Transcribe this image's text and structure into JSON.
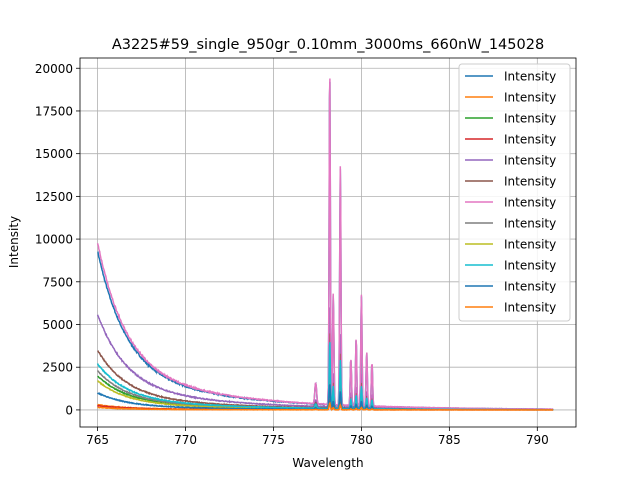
{
  "chart_data": {
    "type": "line",
    "title": "A3225#59_single_950gr_0.10mm_3000ms_660nW_145028",
    "xlabel": "Wavelength",
    "ylabel": "Intensity",
    "xlim": [
      764.0,
      792.2
    ],
    "ylim": [
      -1000,
      20600
    ],
    "xticks": [
      765,
      770,
      775,
      780,
      785,
      790
    ],
    "yticks": [
      0,
      2500,
      5000,
      7500,
      10000,
      12500,
      15000,
      17500,
      20000
    ],
    "xtick_labels": [
      "765",
      "770",
      "775",
      "780",
      "785",
      "790"
    ],
    "ytick_labels": [
      "0",
      "2500",
      "5000",
      "7500",
      "10000",
      "12500",
      "15000",
      "17500",
      "20000"
    ],
    "grid": true,
    "legend_position": "top-right",
    "peaks": [
      {
        "x": 777.4,
        "w": 0.07,
        "h": 0.062
      },
      {
        "x": 778.2,
        "w": 0.05,
        "h": 1.0
      },
      {
        "x": 778.4,
        "w": 0.05,
        "h": 0.33
      },
      {
        "x": 778.8,
        "w": 0.05,
        "h": 0.71
      },
      {
        "x": 779.4,
        "w": 0.05,
        "h": 0.14
      },
      {
        "x": 779.7,
        "w": 0.05,
        "h": 0.2
      },
      {
        "x": 780.0,
        "w": 0.05,
        "h": 0.33
      },
      {
        "x": 780.3,
        "w": 0.05,
        "h": 0.16
      },
      {
        "x": 780.6,
        "w": 0.05,
        "h": 0.13
      }
    ],
    "series": [
      {
        "name": "Intensity",
        "color": "#1f77b4",
        "start": 9300,
        "peak": 19500,
        "noise": 120
      },
      {
        "name": "Intensity",
        "color": "#ff7f0e",
        "start": 300,
        "peak": 2700,
        "noise": 40
      },
      {
        "name": "Intensity",
        "color": "#2ca02c",
        "start": 2000,
        "peak": 1800,
        "noise": 60
      },
      {
        "name": "Intensity",
        "color": "#d62728",
        "start": 250,
        "peak": 600,
        "noise": 40
      },
      {
        "name": "Intensity",
        "color": "#9467bd",
        "start": 5600,
        "peak": 6000,
        "noise": 90
      },
      {
        "name": "Intensity",
        "color": "#8c564b",
        "start": 3500,
        "peak": 4500,
        "noise": 70
      },
      {
        "name": "Intensity",
        "color": "#e377c2",
        "start": 9800,
        "peak": 19700,
        "noise": 120
      },
      {
        "name": "Intensity",
        "color": "#7f7f7f",
        "start": 2300,
        "peak": 2000,
        "noise": 60
      },
      {
        "name": "Intensity",
        "color": "#bcbd22",
        "start": 1700,
        "peak": 1500,
        "noise": 50
      },
      {
        "name": "Intensity",
        "color": "#17becf",
        "start": 2700,
        "peak": 4000,
        "noise": 70
      },
      {
        "name": "Intensity",
        "color": "#1f77b4",
        "start": 1000,
        "peak": 1500,
        "noise": 50
      },
      {
        "name": "Intensity",
        "color": "#ff7f0e",
        "start": 150,
        "peak": 400,
        "noise": 30
      }
    ]
  }
}
